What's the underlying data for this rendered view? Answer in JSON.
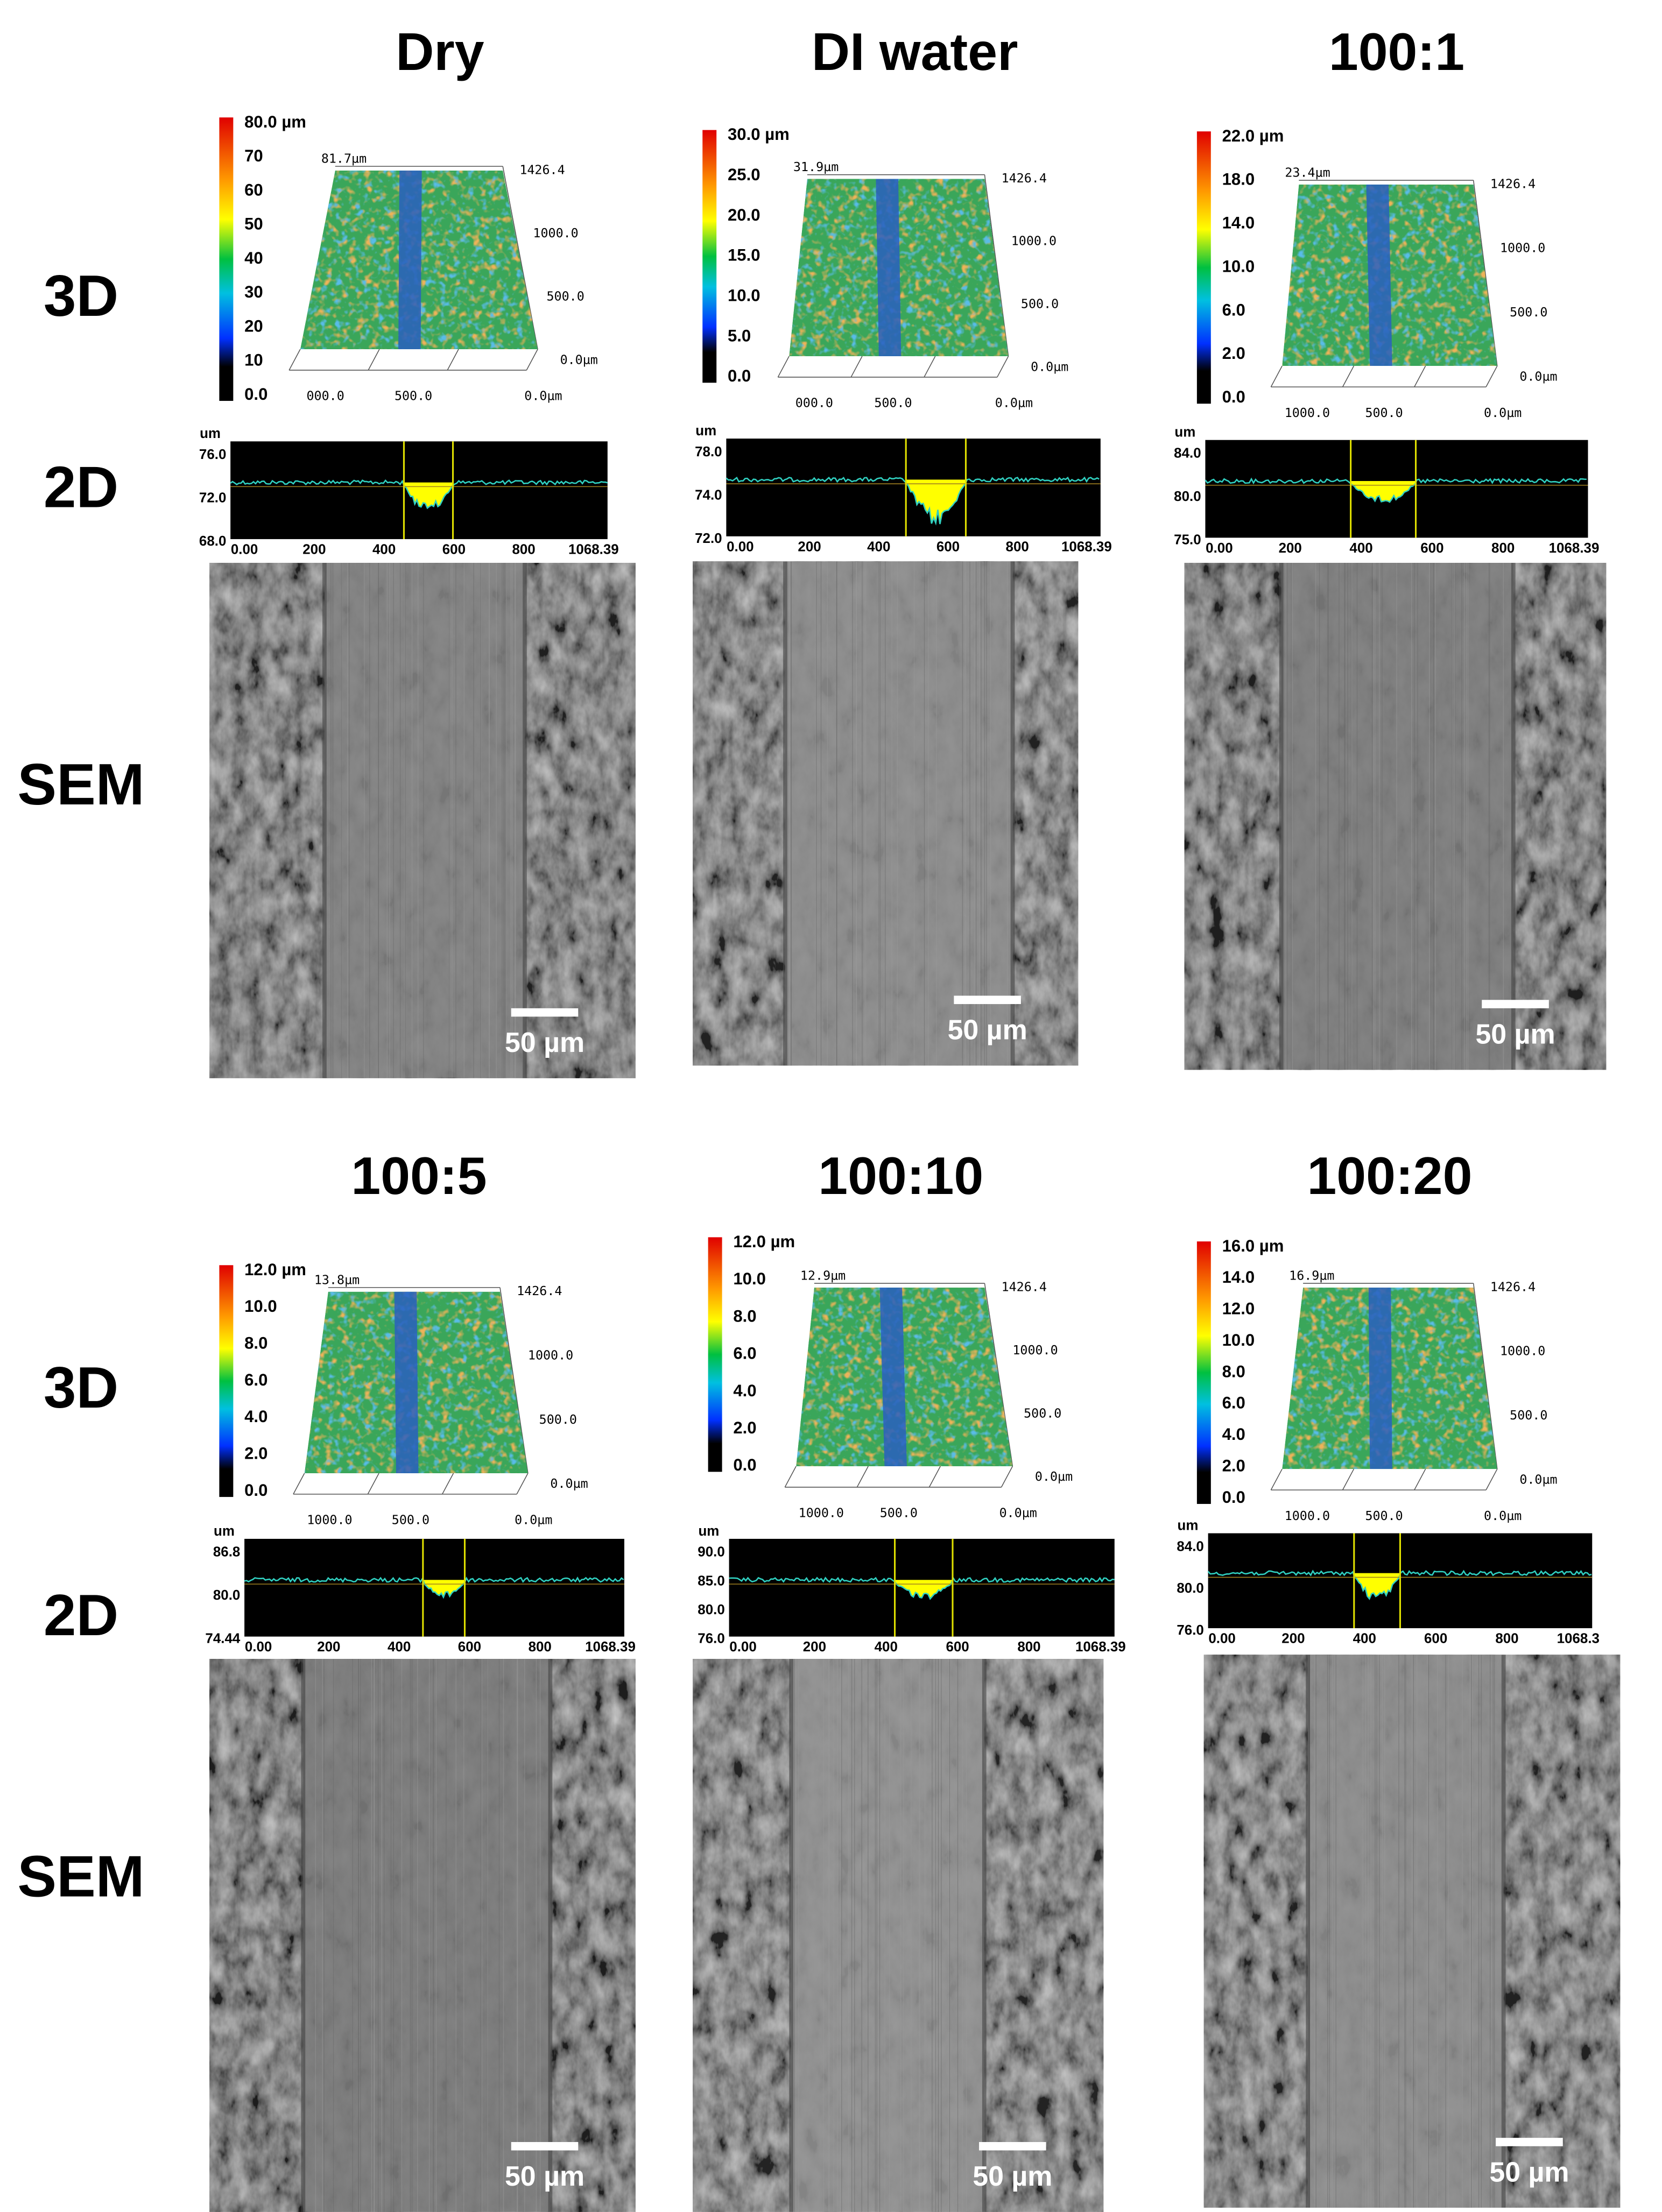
{
  "row_labels": [
    "3D",
    "2D",
    "SEM"
  ],
  "panels": [
    {
      "title": "Dry",
      "colorbar": [
        "80.0 µm",
        "70",
        "60",
        "50",
        "40",
        "30",
        "20",
        "10",
        "0.0"
      ],
      "peak": "81.7µm",
      "side_axis": [
        "1426.4",
        "1000.0",
        "500.0",
        "0.0µm"
      ],
      "bottom_axis": [
        "000.0",
        "500.0",
        "0.0µm"
      ],
      "profile": {
        "unit": "um",
        "y_ticks": [
          "76.0",
          "72.0",
          "68.0"
        ],
        "x_ticks": [
          "0.00",
          "200",
          "400",
          "600",
          "800",
          "1068.39"
        ]
      },
      "scale_bar": "50 µm"
    },
    {
      "title": "DI water",
      "colorbar": [
        "30.0 µm",
        "25.0",
        "20.0",
        "15.0",
        "10.0",
        "5.0",
        "0.0"
      ],
      "peak": "31.9µm",
      "side_axis": [
        "1426.4",
        "1000.0",
        "500.0",
        "0.0µm"
      ],
      "bottom_axis": [
        "000.0",
        "500.0",
        "0.0µm"
      ],
      "profile": {
        "unit": "um",
        "y_ticks": [
          "78.0",
          "74.0",
          "72.0"
        ],
        "x_ticks": [
          "0.00",
          "200",
          "400",
          "600",
          "800",
          "1068.39"
        ]
      },
      "scale_bar": "50 µm"
    },
    {
      "title": "100:1",
      "colorbar": [
        "22.0 µm",
        "18.0",
        "14.0",
        "10.0",
        "6.0",
        "2.0",
        "0.0"
      ],
      "peak": "23.4µm",
      "side_axis": [
        "1426.4",
        "1000.0",
        "500.0",
        "0.0µm"
      ],
      "bottom_axis": [
        "1000.0",
        "500.0",
        "0.0µm"
      ],
      "profile": {
        "unit": "um",
        "y_ticks": [
          "84.0",
          "80.0",
          "75.0"
        ],
        "x_ticks": [
          "0.00",
          "200",
          "400",
          "600",
          "800",
          "1068.39"
        ]
      },
      "scale_bar": "50 µm"
    },
    {
      "title": "100:5",
      "colorbar": [
        "12.0 µm",
        "10.0",
        "8.0",
        "6.0",
        "4.0",
        "2.0",
        "0.0"
      ],
      "peak": "13.8µm",
      "side_axis": [
        "1426.4",
        "1000.0",
        "500.0",
        "0.0µm"
      ],
      "bottom_axis": [
        "1000.0",
        "500.0",
        "0.0µm"
      ],
      "profile": {
        "unit": "um",
        "y_ticks": [
          "86.8",
          "80.0",
          "74.44"
        ],
        "x_ticks": [
          "0.00",
          "200",
          "400",
          "600",
          "800",
          "1068.39"
        ]
      },
      "scale_bar": "50 µm"
    },
    {
      "title": "100:10",
      "colorbar": [
        "12.0 µm",
        "10.0",
        "8.0",
        "6.0",
        "4.0",
        "2.0",
        "0.0"
      ],
      "peak": "12.9µm",
      "side_axis": [
        "1426.4",
        "1000.0",
        "500.0",
        "0.0µm"
      ],
      "bottom_axis": [
        "1000.0",
        "500.0",
        "0.0µm"
      ],
      "profile": {
        "unit": "um",
        "y_ticks": [
          "90.0",
          "85.0",
          "80.0",
          "76.0"
        ],
        "x_ticks": [
          "0.00",
          "200",
          "400",
          "600",
          "800",
          "1068.39"
        ]
      },
      "scale_bar": "50 µm"
    },
    {
      "title": "100:20",
      "colorbar": [
        "16.0 µm",
        "14.0",
        "12.0",
        "10.0",
        "8.0",
        "6.0",
        "4.0",
        "2.0",
        "0.0"
      ],
      "peak": "16.9µm",
      "side_axis": [
        "1426.4",
        "1000.0",
        "500.0",
        "0.0µm"
      ],
      "bottom_axis": [
        "1000.0",
        "500.0",
        "0.0µm"
      ],
      "profile": {
        "unit": "um",
        "y_ticks": [
          "84.0",
          "80.0",
          "76.0"
        ],
        "x_ticks": [
          "0.00",
          "200",
          "400",
          "600",
          "800",
          "1068.3"
        ]
      },
      "scale_bar": "50 µm"
    }
  ]
}
